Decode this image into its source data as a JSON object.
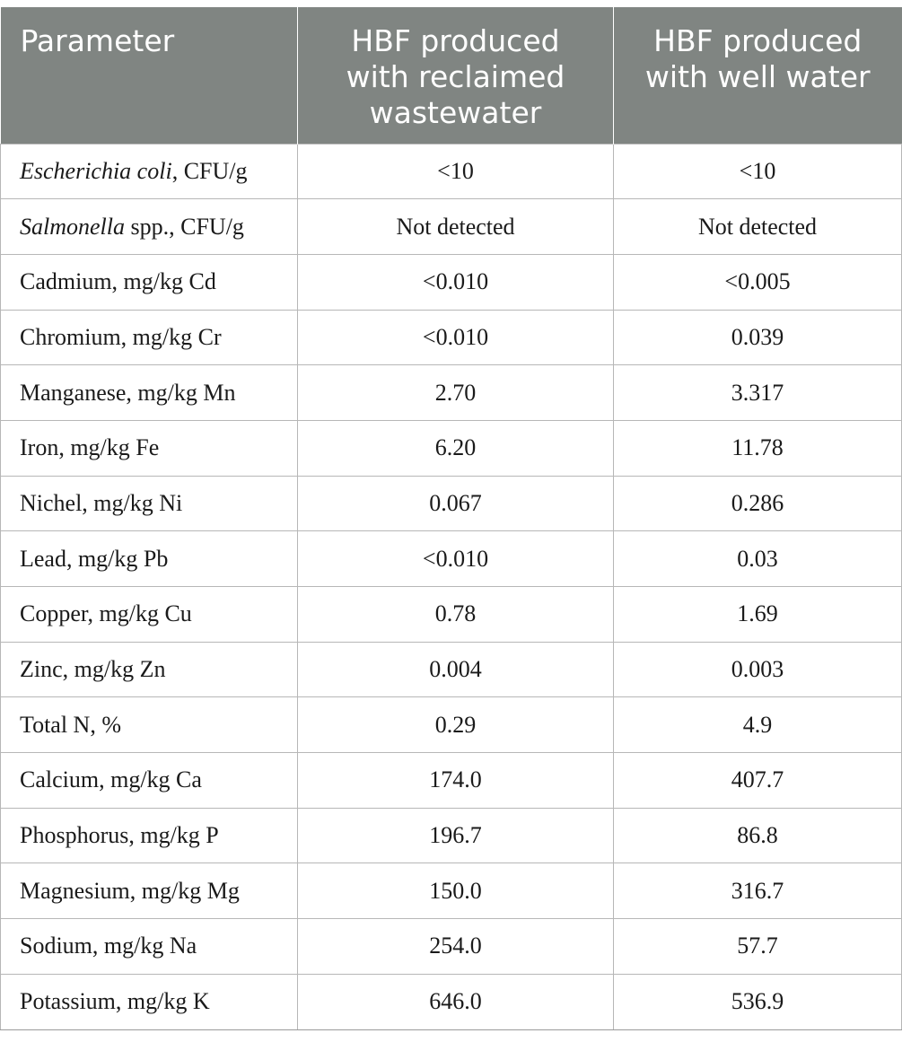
{
  "header": {
    "col1": "Parameter",
    "col2_lines": [
      "HBF produced",
      "with reclaimed",
      "wastewater"
    ],
    "col3_lines": [
      "HBF produced",
      "with well water"
    ]
  },
  "rows": [
    {
      "param_italic": "Escherichia coli",
      "param_rest": ", CFU/g",
      "reclaimed": "<10",
      "well": "<10"
    },
    {
      "param_italic": "Salmonella",
      "param_rest": " spp., CFU/g",
      "reclaimed": "Not detected",
      "well": "Not detected"
    },
    {
      "param_italic": "",
      "param_rest": "Cadmium, mg/kg Cd",
      "reclaimed": "<0.010",
      "well": "<0.005"
    },
    {
      "param_italic": "",
      "param_rest": "Chromium, mg/kg Cr",
      "reclaimed": "<0.010",
      "well": "0.039"
    },
    {
      "param_italic": "",
      "param_rest": "Manganese, mg/kg Mn",
      "reclaimed": "2.70",
      "well": "3.317"
    },
    {
      "param_italic": "",
      "param_rest": "Iron, mg/kg Fe",
      "reclaimed": "6.20",
      "well": "11.78"
    },
    {
      "param_italic": "",
      "param_rest": "Nichel, mg/kg Ni",
      "reclaimed": "0.067",
      "well": "0.286"
    },
    {
      "param_italic": "",
      "param_rest": "Lead, mg/kg Pb",
      "reclaimed": "<0.010",
      "well": "0.03"
    },
    {
      "param_italic": "",
      "param_rest": "Copper, mg/kg Cu",
      "reclaimed": "0.78",
      "well": "1.69"
    },
    {
      "param_italic": "",
      "param_rest": "Zinc, mg/kg Zn",
      "reclaimed": "0.004",
      "well": "0.003"
    },
    {
      "param_italic": "",
      "param_rest": "Total N, %",
      "reclaimed": "0.29",
      "well": "4.9"
    },
    {
      "param_italic": "",
      "param_rest": "Calcium, mg/kg Ca",
      "reclaimed": "174.0",
      "well": "407.7"
    },
    {
      "param_italic": "",
      "param_rest": "Phosphorus, mg/kg P",
      "reclaimed": "196.7",
      "well": "86.8"
    },
    {
      "param_italic": "",
      "param_rest": "Magnesium, mg/kg Mg",
      "reclaimed": "150.0",
      "well": "316.7"
    },
    {
      "param_italic": "",
      "param_rest": "Sodium, mg/kg Na",
      "reclaimed": "254.0",
      "well": "57.7"
    },
    {
      "param_italic": "",
      "param_rest": "Potassium, mg/kg K",
      "reclaimed": "646.0",
      "well": "536.9"
    }
  ]
}
